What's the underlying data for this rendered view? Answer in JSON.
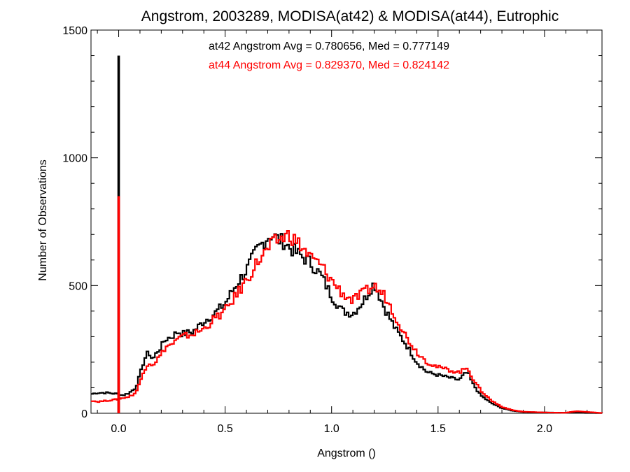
{
  "chart_data": {
    "type": "line",
    "title": "Angstrom, 2003289, MODISA(at42) & MODISA(at44), Eutrophic",
    "xlabel": "Angstrom ()",
    "ylabel": "Number of Observations",
    "xlim": [
      -0.13,
      2.27
    ],
    "ylim": [
      0,
      1500
    ],
    "grid": false,
    "x_ticks": [
      0.0,
      0.5,
      1.0,
      1.5,
      2.0
    ],
    "x_tick_labels": [
      "0.0",
      "0.5",
      "1.0",
      "1.5",
      "2.0"
    ],
    "y_ticks": [
      0,
      500,
      1000,
      1500
    ],
    "y_tick_labels": [
      "0",
      "500",
      "1000",
      "1500"
    ],
    "annotations": [
      {
        "text": "at42 Angstrom Avg = 0.780656, Med = 0.777149",
        "color": "#000000"
      },
      {
        "text": "at44 Angstrom Avg = 0.829370, Med = 0.824142",
        "color": "#ff0000"
      }
    ],
    "series": [
      {
        "color": "#000000",
        "x": [
          -0.13,
          -0.1,
          -0.05,
          0.0,
          0.02,
          0.05,
          0.08,
          0.1,
          0.12,
          0.14,
          0.16,
          0.18,
          0.2,
          0.22,
          0.25,
          0.28,
          0.3,
          0.35,
          0.4,
          0.45,
          0.5,
          0.55,
          0.6,
          0.65,
          0.7,
          0.72,
          0.75,
          0.78,
          0.8,
          0.85,
          0.9,
          0.95,
          1.0,
          1.05,
          1.1,
          1.15,
          1.2,
          1.22,
          1.25,
          1.3,
          1.35,
          1.4,
          1.45,
          1.5,
          1.55,
          1.6,
          1.62,
          1.64,
          1.66,
          1.7,
          1.75,
          1.8,
          1.85,
          1.9,
          2.0,
          2.1,
          2.27
        ],
        "y": [
          75,
          80,
          80,
          75,
          70,
          80,
          100,
          150,
          210,
          240,
          210,
          240,
          260,
          290,
          300,
          320,
          310,
          320,
          360,
          390,
          430,
          500,
          560,
          640,
          690,
          700,
          680,
          670,
          650,
          620,
          590,
          540,
          460,
          400,
          390,
          440,
          510,
          470,
          410,
          330,
          270,
          200,
          160,
          150,
          140,
          130,
          150,
          160,
          120,
          70,
          40,
          20,
          10,
          5,
          3,
          2,
          1
        ],
        "spikes": [
          {
            "x": 0.0,
            "y": 1400
          }
        ]
      },
      {
        "color": "#ff0000",
        "x": [
          -0.13,
          -0.1,
          -0.05,
          0.0,
          0.02,
          0.05,
          0.08,
          0.1,
          0.12,
          0.14,
          0.16,
          0.18,
          0.2,
          0.22,
          0.25,
          0.28,
          0.3,
          0.35,
          0.4,
          0.45,
          0.5,
          0.55,
          0.6,
          0.65,
          0.7,
          0.72,
          0.75,
          0.78,
          0.8,
          0.85,
          0.9,
          0.95,
          1.0,
          1.05,
          1.1,
          1.15,
          1.2,
          1.22,
          1.25,
          1.3,
          1.35,
          1.4,
          1.45,
          1.5,
          1.55,
          1.6,
          1.62,
          1.64,
          1.66,
          1.7,
          1.75,
          1.8,
          1.85,
          1.9,
          2.0,
          2.1,
          2.15,
          2.27
        ],
        "y": [
          50,
          45,
          50,
          55,
          60,
          65,
          80,
          120,
          170,
          200,
          190,
          210,
          230,
          260,
          270,
          290,
          300,
          310,
          330,
          370,
          400,
          460,
          520,
          590,
          640,
          660,
          680,
          690,
          700,
          660,
          610,
          580,
          520,
          470,
          440,
          470,
          500,
          480,
          460,
          380,
          300,
          240,
          200,
          180,
          170,
          160,
          170,
          180,
          140,
          90,
          50,
          25,
          12,
          6,
          3,
          2,
          8,
          1
        ],
        "spikes": [
          {
            "x": 0.0,
            "y": 850
          }
        ]
      }
    ]
  }
}
